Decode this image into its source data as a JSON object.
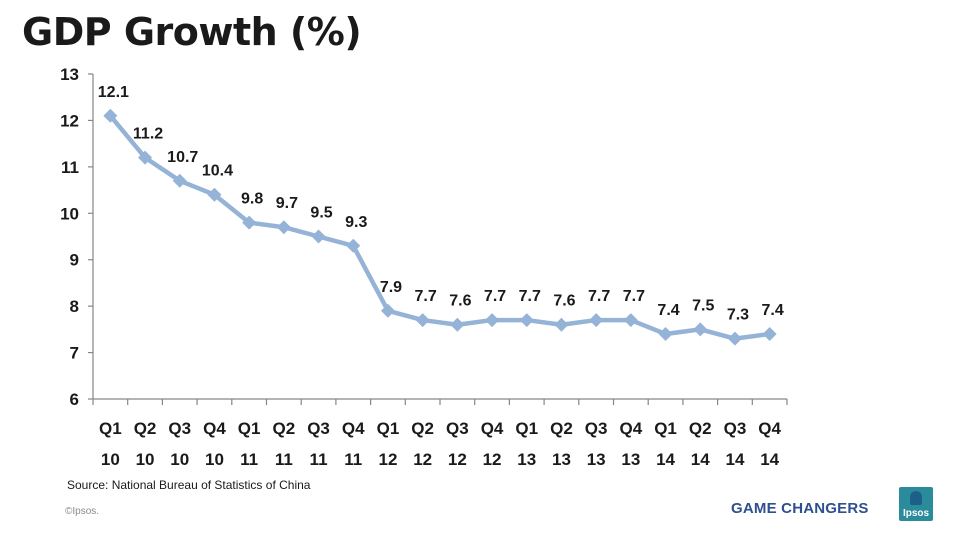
{
  "title": "GDP Growth (%)",
  "source": "Source: National Bureau of Statistics of China",
  "copyright": "©Ipsos.",
  "tagline": "GAME CHANGERS",
  "logo_text": "Ipsos",
  "colors": {
    "line": "#95b3d7",
    "axis": "#868686",
    "tagline": "#2f4f8f",
    "logo": "#2a8c9a"
  },
  "chart_data": {
    "type": "line",
    "title": "GDP Growth (%)",
    "xlabel": "",
    "ylabel": "",
    "ylim": [
      6,
      13
    ],
    "yticks": [
      6,
      7,
      8,
      9,
      10,
      11,
      12,
      13
    ],
    "grid": false,
    "legend": "none",
    "categories": [
      [
        "Q1",
        "10"
      ],
      [
        "Q2",
        "10"
      ],
      [
        "Q3",
        "10"
      ],
      [
        "Q4",
        "10"
      ],
      [
        "Q1",
        "11"
      ],
      [
        "Q2",
        "11"
      ],
      [
        "Q3",
        "11"
      ],
      [
        "Q4",
        "11"
      ],
      [
        "Q1",
        "12"
      ],
      [
        "Q2",
        "12"
      ],
      [
        "Q3",
        "12"
      ],
      [
        "Q4",
        "12"
      ],
      [
        "Q1",
        "13"
      ],
      [
        "Q2",
        "13"
      ],
      [
        "Q3",
        "13"
      ],
      [
        "Q4",
        "13"
      ],
      [
        "Q1",
        "14"
      ],
      [
        "Q2",
        "14"
      ],
      [
        "Q3",
        "14"
      ],
      [
        "Q4",
        "14"
      ]
    ],
    "series": [
      {
        "values": [
          12.1,
          11.2,
          10.7,
          10.4,
          9.8,
          9.7,
          9.5,
          9.3,
          7.9,
          7.7,
          7.6,
          7.7,
          7.7,
          7.6,
          7.7,
          7.7,
          7.4,
          7.5,
          7.3,
          7.4
        ],
        "labels": [
          "12.1",
          "11.2",
          "10.7",
          "10.4",
          "9.8",
          "9.7",
          "9.5",
          "9.3",
          "7.9",
          "7.7",
          "7.6",
          "7.7",
          "7.7",
          "7.6",
          "7.7",
          "7.7",
          "7.4",
          "7.5",
          "7.3",
          "7.4"
        ]
      }
    ]
  }
}
